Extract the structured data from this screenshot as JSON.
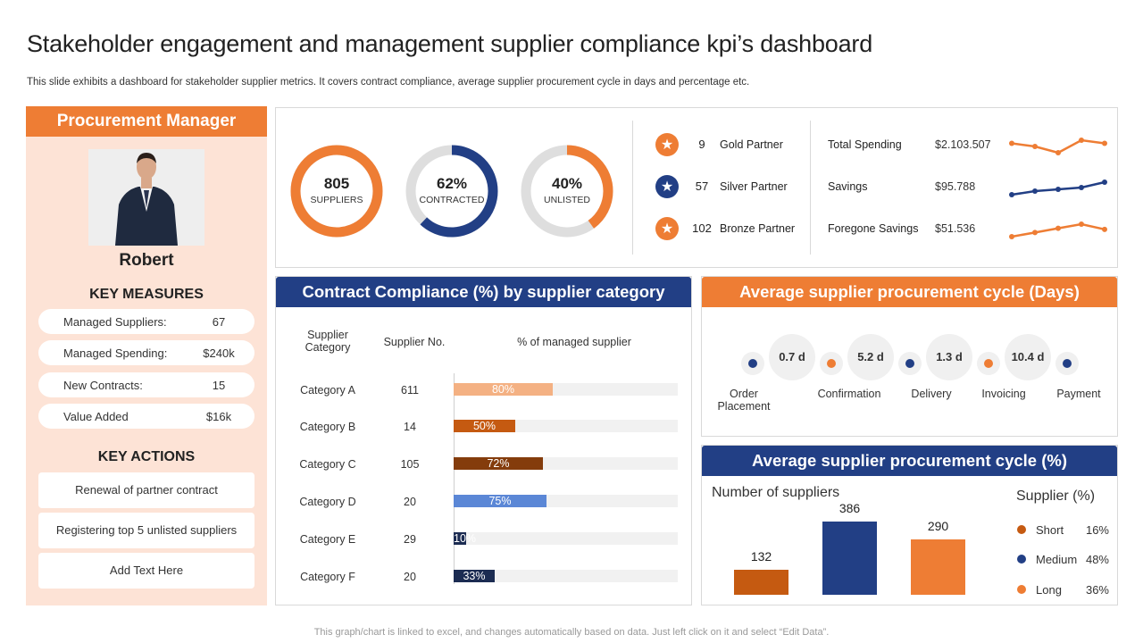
{
  "title": "Stakeholder engagement and management supplier compliance kpi’s dashboard",
  "subtitle": "This slide exhibits a dashboard for stakeholder supplier metrics. It covers contract compliance, average supplier procurement cycle in days and percentage etc.",
  "footer": "This graph/chart is linked to excel,  and changes automatically based on data. Just left click on it and select “Edit Data”.",
  "colors": {
    "orange": "#ee7d34",
    "blue": "#223f85",
    "peach": "#fde3d6",
    "brown": "#c55a11",
    "dark_brown": "#843c0c",
    "light_orange": "#f4b183",
    "light_blue": "#5b87d6",
    "navy": "#1c2c52"
  },
  "left_panel": {
    "header": "Procurement Manager",
    "name": "Robert",
    "key_measures_title": "KEY MEASURES",
    "measures": [
      {
        "label": "Managed Suppliers:",
        "value": "67"
      },
      {
        "label": "Managed Spending:",
        "value": "$240k"
      },
      {
        "label": "New Contracts:",
        "value": "15"
      },
      {
        "label": "Value Added",
        "value": "$16k"
      }
    ],
    "key_actions_title": "KEY ACTIONS",
    "actions": [
      "Renewal  of partner contract",
      "Registering top 5 unlisted suppliers",
      "Add Text Here"
    ]
  },
  "kpi": {
    "donuts": [
      {
        "value": "805",
        "label": "SUPPLIERS",
        "fraction": 1.0,
        "color": "#ee7d34"
      },
      {
        "value": "62%",
        "label": "CONTRACTED",
        "fraction": 0.62,
        "color": "#223f85"
      },
      {
        "value": "40%",
        "label": "UNLISTED",
        "fraction": 0.4,
        "color": "#ee7d34"
      }
    ],
    "partners": [
      {
        "count": "9",
        "label": "Gold Partner",
        "color": "#ee7d34"
      },
      {
        "count": "57",
        "label": "Silver Partner",
        "color": "#223f85"
      },
      {
        "count": "102",
        "label": "Bronze Partner",
        "color": "#ee7d34"
      }
    ],
    "spending": [
      {
        "label": "Total Spending",
        "value": "$2.103.507",
        "trend": [
          5,
          4,
          2,
          6,
          5
        ],
        "color": "#ee7d34"
      },
      {
        "label": "Savings",
        "value": "$95.788",
        "trend": [
          1,
          2,
          2.5,
          3,
          4.5
        ],
        "color": "#223f85"
      },
      {
        "label": "Foregone Savings",
        "value": "$51.536",
        "trend": [
          1,
          1.8,
          2.6,
          3.4,
          2.4
        ],
        "color": "#ee7d34"
      }
    ]
  },
  "contract_compliance": {
    "header": "Contract Compliance (%) by supplier category",
    "col_category": "Supplier Category",
    "col_supplier_no": "Supplier No.",
    "col_percent": "% of managed  supplier",
    "rows": [
      {
        "category": "Category A",
        "supplier_no": "611",
        "percent": 80,
        "label": "80%",
        "color": "#f4b183"
      },
      {
        "category": "Category B",
        "supplier_no": "14",
        "percent": 50,
        "label": "50%",
        "color": "#c55a11"
      },
      {
        "category": "Category C",
        "supplier_no": "105",
        "percent": 72,
        "label": "72%",
        "color": "#843c0c"
      },
      {
        "category": "Category D",
        "supplier_no": "20",
        "percent": 75,
        "label": "75%",
        "color": "#5b87d6"
      },
      {
        "category": "Category E",
        "supplier_no": "29",
        "percent": 10,
        "label": "10%",
        "color": "#1c2c52"
      },
      {
        "category": "Category F",
        "supplier_no": "20",
        "percent": 33,
        "label": "33%",
        "color": "#1c2c52"
      }
    ]
  },
  "cycle_days": {
    "header": "Average supplier procurement cycle (Days)",
    "values": [
      "0.7 d",
      "5.2 d",
      "1.3 d",
      "10.4 d"
    ],
    "stages": [
      "Order Placement",
      "Confirmation",
      "Delivery",
      "Invoicing",
      "Payment"
    ]
  },
  "cycle_percent": {
    "header": "Average supplier procurement cycle (%)",
    "chart_title": "Number of suppliers",
    "legend_title": "Supplier (%)",
    "chart_data": {
      "type": "bar",
      "title": "Number of suppliers",
      "categories": [
        "Short",
        "Medium",
        "Long"
      ],
      "values": [
        132,
        386,
        290
      ],
      "ylim": [
        0,
        400
      ]
    },
    "legend": [
      {
        "name": "Short",
        "percent": "16%",
        "color": "#c55a11"
      },
      {
        "name": "Medium",
        "percent": "48%",
        "color": "#223f85"
      },
      {
        "name": "Long",
        "percent": "36%",
        "color": "#ee7d34"
      }
    ]
  }
}
